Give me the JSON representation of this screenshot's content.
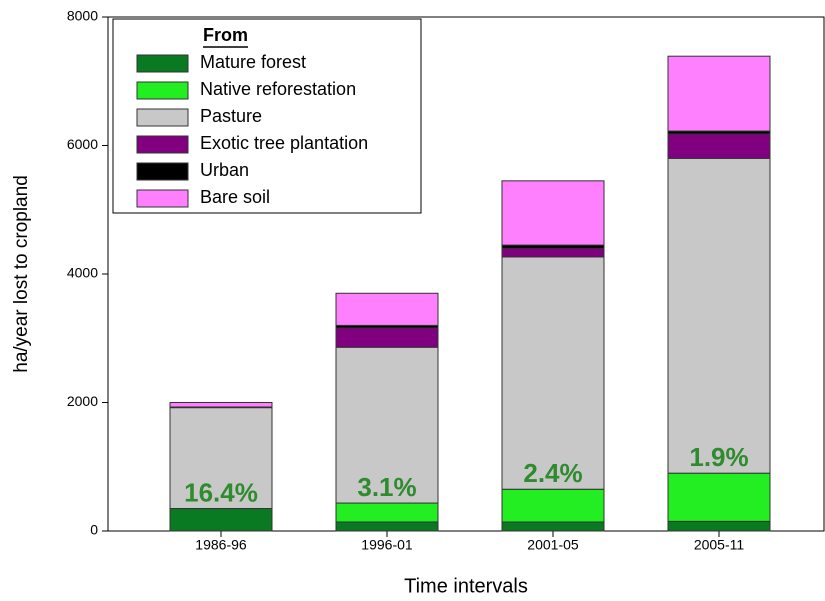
{
  "chart_data": {
    "type": "stacked_bar",
    "xlabel": "Time intervals",
    "ylabel": "ha/year lost to cropland",
    "legend_title": "From",
    "legend": "upper left",
    "categories": [
      "1986-96",
      "1996-01",
      "2001-05",
      "2005-11"
    ],
    "series": [
      {
        "name": "Mature forest",
        "color": "#0a7a22",
        "values": [
          350,
          140,
          140,
          150
        ]
      },
      {
        "name": "Native reforestation",
        "color": "#22ee22",
        "values": [
          0,
          295,
          510,
          750
        ]
      },
      {
        "name": "Pasture",
        "color": "#c8c8c8",
        "values": [
          1570,
          2425,
          3615,
          4900
        ]
      },
      {
        "name": "Exotic tree plantation",
        "color": "#800080",
        "values": [
          0,
          300,
          135,
          380
        ]
      },
      {
        "name": "Urban",
        "color": "#000000",
        "values": [
          10,
          40,
          50,
          45
        ]
      },
      {
        "name": "Bare soil",
        "color": "#ff80ff",
        "values": [
          70,
          500,
          1000,
          1165
        ]
      }
    ],
    "annotations": [
      "16.4%",
      "3.1%",
      "2.4%",
      "1.9%"
    ],
    "annotation_color": "#2e8b2e",
    "ylim": [
      0,
      8000
    ],
    "yticks": [
      0,
      2000,
      4000,
      6000,
      8000
    ]
  }
}
